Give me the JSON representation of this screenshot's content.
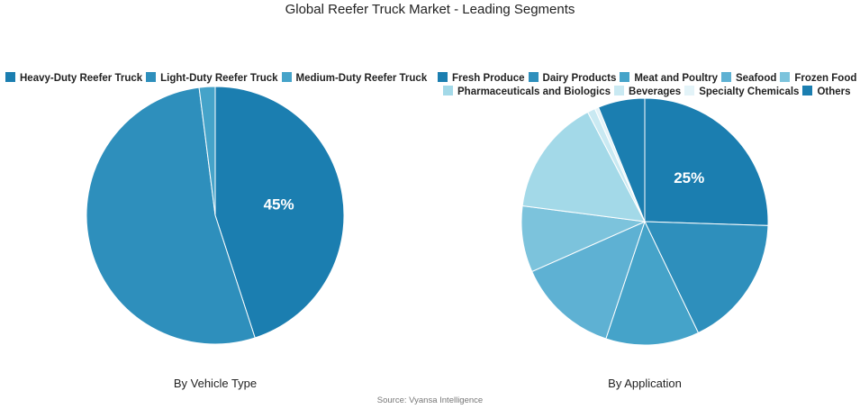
{
  "title": "Global Reefer Truck Market - Leading Segments",
  "source": "Source: Vyansa Intelligence",
  "chart_data": [
    {
      "type": "pie",
      "subtitle": "By Vehicle Type",
      "legend_position": "top",
      "slices": [
        {
          "label": "Heavy-Duty Reefer Truck",
          "value": 45,
          "color": "#1b7eb0",
          "show_label": true
        },
        {
          "label": "Light-Duty Reefer Truck",
          "value": 53,
          "color": "#2e8fbc",
          "show_label": false
        },
        {
          "label": "Medium-Duty Reefer Truck",
          "value": 2,
          "color": "#45a3c9",
          "show_label": false
        }
      ]
    },
    {
      "type": "pie",
      "subtitle": "By Application",
      "legend_position": "top",
      "slices": [
        {
          "label": "Fresh Produce",
          "value": 25,
          "color": "#1b7eb0",
          "show_label": true
        },
        {
          "label": "Dairy Products",
          "value": 17,
          "color": "#2e8fbc",
          "show_label": false
        },
        {
          "label": "Meat and Poultry",
          "value": 12,
          "color": "#45a3c9",
          "show_label": false
        },
        {
          "label": "Seafood",
          "value": 13,
          "color": "#5eb1d3",
          "show_label": false
        },
        {
          "label": "Frozen Food",
          "value": 8.5,
          "color": "#7cc3dc",
          "show_label": false
        },
        {
          "label": "Pharmaceuticals and Biologics",
          "value": 15,
          "color": "#a3d9e8",
          "show_label": false
        },
        {
          "label": "Beverages",
          "value": 1,
          "color": "#c9e9f2",
          "show_label": false
        },
        {
          "label": "Specialty Chemicals",
          "value": 0.5,
          "color": "#e3f3f8",
          "show_label": false
        },
        {
          "label": "Others",
          "value": 6,
          "color": "#1b7eb0",
          "show_label": false
        }
      ]
    }
  ]
}
